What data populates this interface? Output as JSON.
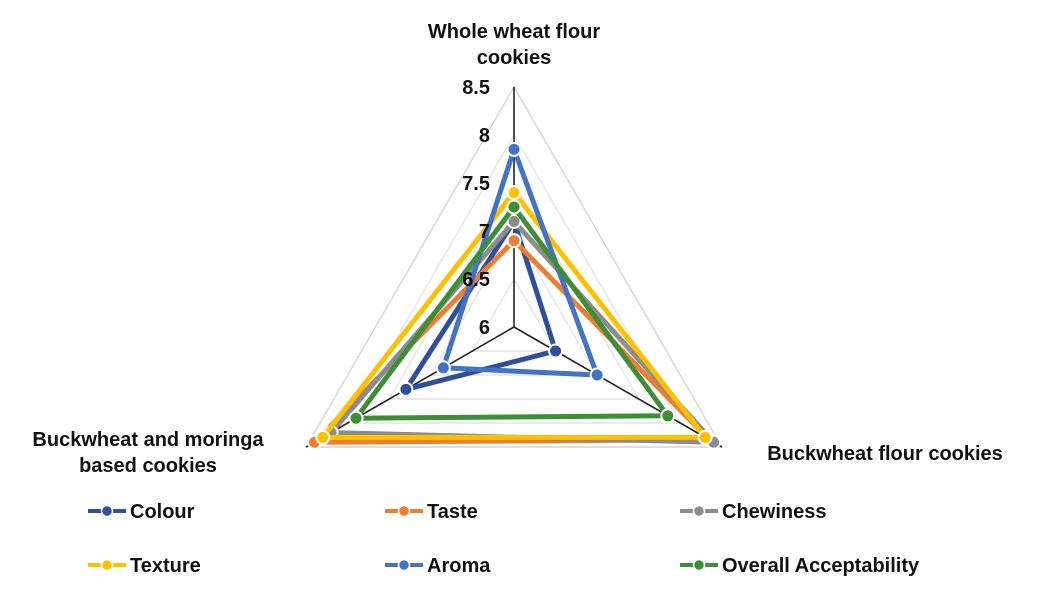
{
  "chart_data": {
    "type": "radar",
    "categories": [
      "Whole wheat flour cookies",
      "Buckwheat flour cookies",
      "Buckwheat and moringa based cookies"
    ],
    "category_label_lines": [
      [
        "Whole wheat flour",
        "cookies"
      ],
      [
        "Buckwheat flour cookies"
      ],
      [
        "Buckwheat and moringa",
        "based cookies"
      ]
    ],
    "r_ticks": [
      "6",
      "6.5",
      "7",
      "7.5",
      "8",
      "8.5"
    ],
    "r_range": [
      6,
      8.5
    ],
    "grid": true,
    "legend_position": "bottom",
    "series": [
      {
        "name": "Colour",
        "color": "#2F4E9C",
        "values": [
          7.1,
          6.5,
          7.3
        ]
      },
      {
        "name": "Taste",
        "color": "#ED7D31",
        "values": [
          6.9,
          8.35,
          8.4
        ]
      },
      {
        "name": "Chewiness",
        "color": "#8C8C8C",
        "values": [
          7.1,
          8.4,
          8.2
        ]
      },
      {
        "name": "Texture",
        "color": "#FFC000",
        "values": [
          7.4,
          8.3,
          8.3
        ]
      },
      {
        "name": "Aroma",
        "color": "#4472C4",
        "values": [
          7.85,
          7.0,
          6.85
        ]
      },
      {
        "name": "Overall Acceptability",
        "color": "#3E8E35",
        "values": [
          7.25,
          7.85,
          7.9
        ]
      }
    ]
  }
}
